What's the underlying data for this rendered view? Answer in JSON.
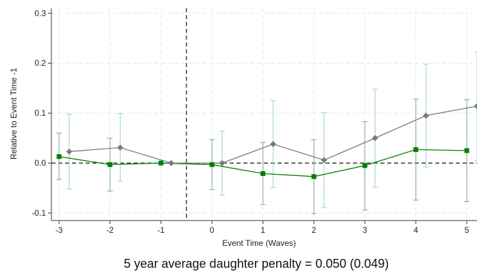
{
  "chart_data": {
    "type": "line",
    "xlabel": "Event Time (Waves)",
    "ylabel": "Relative to Event Time -1",
    "caption": "5 year average daughter penalty = 0.050 (0.049)",
    "xlim": [
      -3.15,
      5.2
    ],
    "ylim": [
      -0.115,
      0.31
    ],
    "x_ticks": [
      -3,
      -2,
      -1,
      0,
      1,
      2,
      3,
      4,
      5
    ],
    "x_tick_labels": [
      "-3",
      "-2",
      "-1",
      "0",
      "1",
      "2",
      "3",
      "4",
      "5"
    ],
    "y_ticks": [
      -0.1,
      0.0,
      0.1,
      0.2,
      0.3
    ],
    "y_tick_labels": [
      "-0.1",
      "0.0",
      "0.1",
      "0.2",
      "0.3"
    ],
    "grid": true,
    "event_line_x": -0.5,
    "zero_line_y": 0,
    "series": [
      {
        "color": "#008000",
        "ci_color": "#8fb3a7",
        "marker": "square",
        "points": [
          {
            "x": -3.0,
            "y": 0.013,
            "lo": -0.033,
            "hi": 0.06
          },
          {
            "x": -2.0,
            "y": -0.003,
            "lo": -0.056,
            "hi": 0.05
          },
          {
            "x": -1.0,
            "y": 0.0,
            "lo": 0.0,
            "hi": 0.0
          },
          {
            "x": 0.0,
            "y": -0.003,
            "lo": -0.053,
            "hi": 0.047
          },
          {
            "x": 1.0,
            "y": -0.021,
            "lo": -0.083,
            "hi": 0.041
          },
          {
            "x": 2.0,
            "y": -0.027,
            "lo": -0.101,
            "hi": 0.047
          },
          {
            "x": 3.0,
            "y": -0.005,
            "lo": -0.094,
            "hi": 0.083
          },
          {
            "x": 4.0,
            "y": 0.027,
            "lo": -0.074,
            "hi": 0.128
          },
          {
            "x": 5.0,
            "y": 0.025,
            "lo": -0.077,
            "hi": 0.127
          }
        ]
      },
      {
        "color": "#7a7a7a",
        "ci_color": "#a9d6df",
        "marker": "diamond",
        "points": [
          {
            "x": -2.8,
            "y": 0.023,
            "lo": -0.052,
            "hi": 0.098
          },
          {
            "x": -1.8,
            "y": 0.031,
            "lo": -0.036,
            "hi": 0.099
          },
          {
            "x": -0.8,
            "y": 0.0,
            "lo": 0.0,
            "hi": 0.0
          },
          {
            "x": 0.2,
            "y": 0.0,
            "lo": -0.064,
            "hi": 0.064
          },
          {
            "x": 1.2,
            "y": 0.038,
            "lo": -0.049,
            "hi": 0.125
          },
          {
            "x": 2.2,
            "y": 0.006,
            "lo": -0.089,
            "hi": 0.101
          },
          {
            "x": 3.2,
            "y": 0.05,
            "lo": -0.048,
            "hi": 0.148
          },
          {
            "x": 4.2,
            "y": 0.095,
            "lo": -0.008,
            "hi": 0.198
          },
          {
            "x": 5.2,
            "y": 0.114,
            "lo": 0.005,
            "hi": 0.222
          }
        ]
      }
    ]
  }
}
